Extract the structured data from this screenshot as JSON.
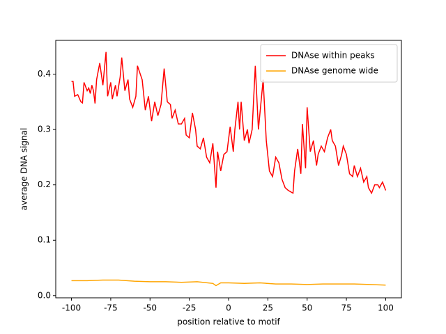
{
  "chart_data": {
    "type": "line",
    "xlabel": "position relative to motif",
    "ylabel": "average DNA signal",
    "xlim": [
      -110,
      110
    ],
    "ylim": [
      -0.004,
      0.461
    ],
    "xticks": [
      -100,
      -75,
      -50,
      -25,
      0,
      25,
      50,
      75,
      100
    ],
    "yticks": [
      {
        "value": 0,
        "label": "0.0"
      },
      0.1,
      0.2,
      0.3,
      0.4
    ],
    "legend": "upper right",
    "series": [
      {
        "name": "DNAse within peaks",
        "color": "#ff0000",
        "x": [
          -100,
          -99,
          -98,
          -96,
          -94,
          -93,
          -92,
          -90,
          -89,
          -88,
          -87,
          -86,
          -85,
          -84,
          -82,
          -80,
          -78,
          -77,
          -75,
          -74,
          -72,
          -71,
          -69,
          -68,
          -66,
          -64,
          -63,
          -61,
          -59,
          -58,
          -55,
          -53,
          -51,
          -49,
          -47,
          -45,
          -43,
          -41,
          -39,
          -37,
          -36,
          -34,
          -32,
          -30,
          -28,
          -27,
          -25,
          -23,
          -21,
          -20,
          -18,
          -16,
          -14,
          -12,
          -10,
          -8,
          -7,
          -5,
          -3,
          -1,
          1,
          3,
          4,
          6,
          7,
          8,
          10,
          12,
          13,
          15,
          17,
          19,
          20,
          22,
          24,
          26,
          28,
          30,
          32,
          34,
          36,
          38,
          41,
          42,
          44,
          46,
          47,
          49,
          50,
          52,
          54,
          56,
          57,
          59,
          61,
          63,
          65,
          66,
          68,
          70,
          72,
          73,
          75,
          77,
          79,
          80,
          82,
          84,
          86,
          88,
          89,
          91,
          93,
          95,
          96,
          98,
          100
        ],
        "values": [
          0.387,
          0.387,
          0.36,
          0.363,
          0.35,
          0.348,
          0.385,
          0.37,
          0.375,
          0.365,
          0.38,
          0.37,
          0.347,
          0.39,
          0.42,
          0.38,
          0.44,
          0.36,
          0.385,
          0.355,
          0.38,
          0.36,
          0.395,
          0.43,
          0.37,
          0.39,
          0.355,
          0.34,
          0.36,
          0.415,
          0.39,
          0.335,
          0.36,
          0.315,
          0.35,
          0.325,
          0.345,
          0.41,
          0.35,
          0.345,
          0.32,
          0.335,
          0.31,
          0.31,
          0.32,
          0.29,
          0.285,
          0.33,
          0.3,
          0.27,
          0.265,
          0.285,
          0.25,
          0.24,
          0.275,
          0.195,
          0.26,
          0.225,
          0.255,
          0.26,
          0.305,
          0.26,
          0.3,
          0.35,
          0.3,
          0.35,
          0.28,
          0.3,
          0.275,
          0.3,
          0.415,
          0.3,
          0.33,
          0.39,
          0.28,
          0.225,
          0.215,
          0.25,
          0.24,
          0.21,
          0.195,
          0.19,
          0.185,
          0.225,
          0.265,
          0.22,
          0.31,
          0.23,
          0.34,
          0.26,
          0.28,
          0.235,
          0.255,
          0.27,
          0.26,
          0.285,
          0.3,
          0.28,
          0.27,
          0.235,
          0.255,
          0.27,
          0.255,
          0.22,
          0.215,
          0.235,
          0.215,
          0.23,
          0.205,
          0.215,
          0.195,
          0.185,
          0.2,
          0.2,
          0.195,
          0.205,
          0.19
        ]
      },
      {
        "name": "DNAse genome wide",
        "color": "#ffa500",
        "x": [
          -100,
          -90,
          -80,
          -70,
          -60,
          -50,
          -40,
          -30,
          -20,
          -10,
          -8,
          -5,
          0,
          10,
          20,
          30,
          40,
          50,
          60,
          70,
          80,
          90,
          100
        ],
        "values": [
          0.027,
          0.027,
          0.028,
          0.028,
          0.026,
          0.025,
          0.025,
          0.024,
          0.025,
          0.022,
          0.018,
          0.023,
          0.023,
          0.022,
          0.023,
          0.021,
          0.021,
          0.02,
          0.021,
          0.021,
          0.021,
          0.02,
          0.019
        ]
      }
    ]
  }
}
